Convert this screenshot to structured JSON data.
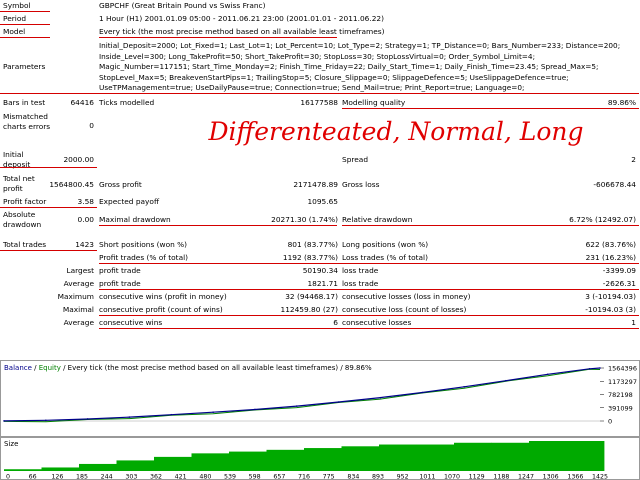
{
  "report": {
    "symbol_label": "Symbol",
    "symbol_value": "GBPCHF (Great Britain Pound vs Swiss Franc)",
    "period_label": "Period",
    "period_value": "1 Hour (H1) 2001.01.09 05:00 - 2011.06.21 23:00 (2001.01.01 - 2011.06.22)",
    "model_label": "Model",
    "model_value": "Every tick (the most precise method based on all available least timeframes)",
    "parameters_label": "Parameters",
    "parameters_lines": [
      "Initial_Deposit=2000; Lot_Fixed=1; Last_Lot=1; Lot_Percent=10; Lot_Type=2; Strategy=1; TP_Distance=0; Bars_Number=233; Distance=200;",
      "Inside_Level=300; Long_TakeProfit=50; Short_TakeProfit=30; StopLoss=30; StopLossVirtual=0; Order_Symbol_Limit=4;",
      "Magic_Number=117151; Start_Time_Monday=2; Finish_Time_Friday=22; Daily_Start_Time=1; Daily_Finish_Time=23.45; Spread_Max=5;",
      "StopLevel_Max=5; BreakevenStartPips=1; TrailingStop=5; Closure_Slippage=0; SlippageDefence=5; UseSlippageDefence=true;",
      "UseTPManagement=true; UseDailyPause=true; Connection=true; Send_Mail=true; Print_Report=true; Language=0;"
    ],
    "bars_label": "Bars in test",
    "bars_value": "64416",
    "ticks_label": "Ticks modelled",
    "ticks_value": "16177588",
    "quality_label": "Modelling quality",
    "quality_value": "89.86%",
    "mismatched_label": "Mismatched charts errors",
    "mismatched_value": "0",
    "initial_deposit_label": "Initial deposit",
    "initial_deposit_value": "2000.00",
    "spread_label": "Spread",
    "spread_value": "2",
    "net_profit_label": "Total net profit",
    "net_profit_value": "1564800.45",
    "gross_profit_label": "Gross profit",
    "gross_profit_value": "2171478.89",
    "gross_loss_label": "Gross loss",
    "gross_loss_value": "-606678.44",
    "profit_factor_label": "Profit factor",
    "profit_factor_value": "3.58",
    "expected_payoff_label": "Expected payoff",
    "expected_payoff_value": "1095.65",
    "abs_drawdown_label": "Absolute drawdown",
    "abs_drawdown_value": "0.00",
    "max_drawdown_label": "Maximal drawdown",
    "max_drawdown_value": "20271.30 (1.74%)",
    "rel_drawdown_label": "Relative drawdown",
    "rel_drawdown_value": "6.72% (12492.07)",
    "total_trades_label": "Total trades",
    "total_trades_value": "1423",
    "short_pos_label": "Short positions (won %)",
    "short_pos_value": "801 (83.77%)",
    "long_pos_label": "Long positions (won %)",
    "long_pos_value": "622 (83.76%)",
    "profit_trades_label": "Profit trades (% of total)",
    "profit_trades_value": "1192 (83.77%)",
    "loss_trades_label": "Loss trades (% of total)",
    "loss_trades_value": "231 (16.23%)",
    "largest_label": "Largest",
    "largest_profit_label": "profit trade",
    "largest_profit_value": "50190.34",
    "largest_loss_label": "loss trade",
    "largest_loss_value": "-3399.09",
    "average_label": "Average",
    "average_profit_label": "profit trade",
    "average_profit_value": "1821.71",
    "average_loss_label": "loss trade",
    "average_loss_value": "-2626.31",
    "maximum_label": "Maximum",
    "max_cons_wins_label": "consecutive wins (profit in money)",
    "max_cons_wins_value": "32 (94468.17)",
    "max_cons_losses_label": "consecutive losses (loss in money)",
    "max_cons_losses_value": "3 (-10194.03)",
    "maximal_label": "Maximal",
    "maximal_profit_label": "consecutive profit (count of wins)",
    "maximal_profit_value": "112459.80 (27)",
    "maximal_loss_label": "consecutive loss (count of losses)",
    "maximal_loss_value": "-10194.03 (3)",
    "average2_label": "Average",
    "avg_cons_wins_label": "consecutive wins",
    "avg_cons_wins_value": "6",
    "avg_cons_losses_label": "consecutive losses",
    "avg_cons_losses_value": "1"
  },
  "overlay_text": "Differenteated, Normal, Long",
  "chart_header": {
    "balance": "Balance",
    "sep1": " / ",
    "equity": "Equity",
    "rest": " / Every tick (the most precise method based on all available least timeframes) / 89.86%"
  },
  "size_label": "Size",
  "colors": {
    "balance": "#00008b",
    "equity": "#008000",
    "size_bars": "#00aa00",
    "underline": "#d40000"
  },
  "chart_data": [
    {
      "type": "line",
      "series": [
        {
          "name": "Balance",
          "x": [
            0,
            100,
            200,
            300,
            400,
            500,
            600,
            700,
            800,
            900,
            1000,
            1100,
            1200,
            1300,
            1400,
            1425
          ],
          "values": [
            2000,
            20000,
            60000,
            115000,
            185000,
            260000,
            340000,
            440000,
            560000,
            690000,
            840000,
            1010000,
            1190000,
            1380000,
            1540000,
            1564800
          ]
        }
      ],
      "yticks": [
        "1564396",
        "1173297",
        "782198",
        "391099",
        "0"
      ],
      "ylim": [
        0,
        1564800
      ],
      "xlim": [
        0,
        1425
      ]
    },
    {
      "type": "bar",
      "x": [
        0,
        100,
        200,
        300,
        400,
        500,
        600,
        700,
        800,
        900,
        1000,
        1100,
        1200,
        1300,
        1400,
        1425
      ],
      "values": [
        1,
        2,
        4,
        6,
        8,
        10,
        11,
        12,
        13,
        14,
        15,
        15,
        16,
        16,
        17,
        17
      ],
      "xticks": [
        "0",
        "66",
        "126",
        "185",
        "244",
        "303",
        "362",
        "421",
        "480",
        "539",
        "598",
        "657",
        "716",
        "775",
        "834",
        "893",
        "952",
        "1011",
        "1070",
        "1129",
        "1188",
        "1247",
        "1306",
        "1366",
        "1425"
      ]
    }
  ]
}
